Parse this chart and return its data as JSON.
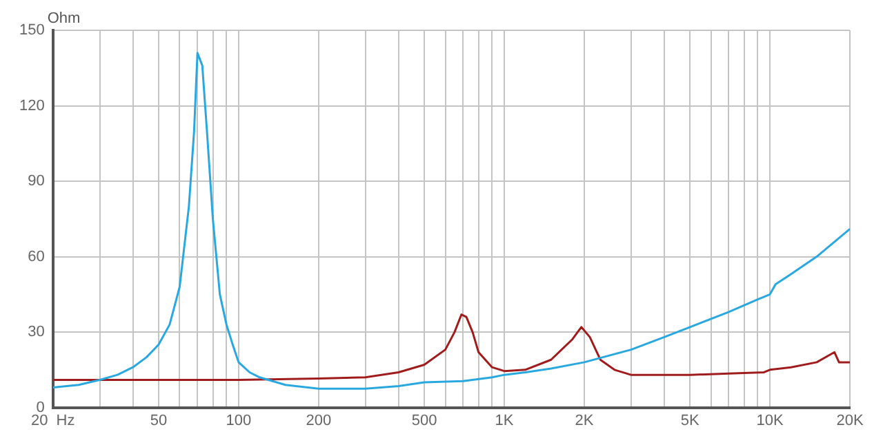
{
  "chart_data": {
    "type": "line",
    "ylabel": "Ohm",
    "log": "x",
    "grid": true,
    "legend": false,
    "marker": "none",
    "line_style": "solid",
    "xlim": [
      20,
      20000
    ],
    "ylim": [
      0,
      150
    ],
    "xticks": [
      {
        "value": 20,
        "label": "20  Hz"
      },
      {
        "value": 30,
        "label": null
      },
      {
        "value": 40,
        "label": null
      },
      {
        "value": 50,
        "label": "50"
      },
      {
        "value": 60,
        "label": null
      },
      {
        "value": 70,
        "label": null
      },
      {
        "value": 80,
        "label": null
      },
      {
        "value": 90,
        "label": null
      },
      {
        "value": 100,
        "label": "100"
      },
      {
        "value": 200,
        "label": "200"
      },
      {
        "value": 300,
        "label": null
      },
      {
        "value": 400,
        "label": null
      },
      {
        "value": 500,
        "label": "500"
      },
      {
        "value": 600,
        "label": null
      },
      {
        "value": 700,
        "label": null
      },
      {
        "value": 800,
        "label": null
      },
      {
        "value": 900,
        "label": null
      },
      {
        "value": 1000,
        "label": "1K"
      },
      {
        "value": 2000,
        "label": "2K"
      },
      {
        "value": 3000,
        "label": null
      },
      {
        "value": 4000,
        "label": null
      },
      {
        "value": 5000,
        "label": "5K"
      },
      {
        "value": 6000,
        "label": null
      },
      {
        "value": 7000,
        "label": null
      },
      {
        "value": 8000,
        "label": null
      },
      {
        "value": 9000,
        "label": null
      },
      {
        "value": 10000,
        "label": "10K"
      },
      {
        "value": 20000,
        "label": "20K"
      }
    ],
    "yticks": [
      0,
      30,
      60,
      90,
      120,
      150
    ],
    "series": [
      {
        "color": "#29a8e0",
        "x": [
          20,
          25,
          30,
          35,
          40,
          45,
          50,
          55,
          60,
          65,
          68,
          70,
          73,
          76,
          80,
          85,
          90,
          95,
          100,
          110,
          120,
          150,
          200,
          300,
          400,
          500,
          700,
          900,
          1000,
          1200,
          1500,
          2000,
          3000,
          4000,
          5000,
          7000,
          9000,
          10000,
          10500,
          12000,
          15000,
          20000
        ],
        "values": [
          8,
          9,
          11,
          13,
          16,
          20,
          25,
          33,
          48,
          80,
          110,
          141,
          136,
          110,
          75,
          45,
          33,
          25,
          18,
          14,
          12,
          9,
          7.5,
          7.5,
          8.5,
          10,
          10.5,
          12,
          13,
          14,
          15.5,
          18,
          23,
          28,
          32,
          38,
          43,
          45,
          49,
          53,
          60,
          71
        ]
      },
      {
        "color": "#a01c1c",
        "x": [
          20,
          100,
          200,
          300,
          400,
          500,
          600,
          650,
          690,
          720,
          760,
          800,
          900,
          1000,
          1200,
          1500,
          1800,
          1950,
          2100,
          2300,
          2600,
          3000,
          5000,
          7000,
          9500,
          10000,
          12000,
          15000,
          17500,
          18200,
          20000
        ],
        "values": [
          11,
          11,
          11.5,
          12,
          14,
          17,
          23,
          30,
          37,
          36,
          30,
          22,
          16,
          14.5,
          15,
          19,
          27,
          32,
          28,
          19,
          15,
          13,
          13,
          13.5,
          14,
          15,
          16,
          18,
          22,
          18,
          18
        ]
      }
    ]
  }
}
